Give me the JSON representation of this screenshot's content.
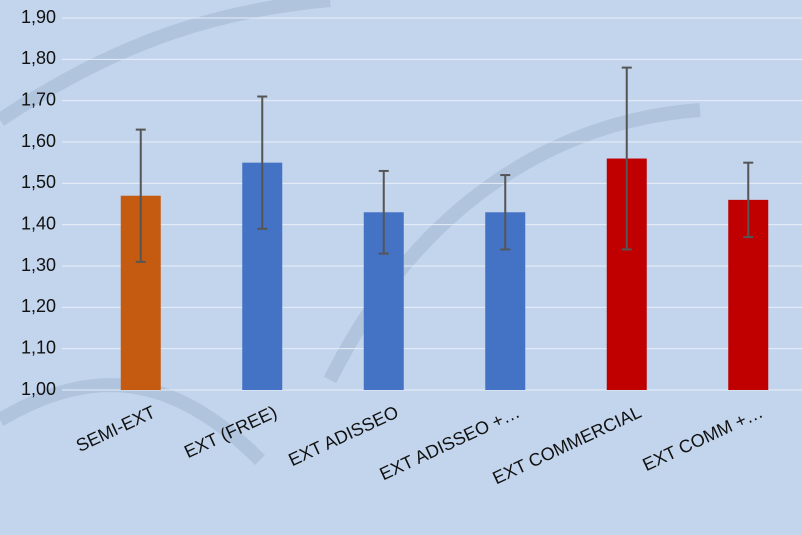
{
  "chart_data": {
    "type": "bar",
    "categories": [
      "SEMI-EXT",
      "EXT (FREE)",
      "EXT ADISSEO",
      "EXT ADISSEO +…",
      "EXT COMMERCIAL",
      "EXT COMM +…"
    ],
    "values": [
      1.47,
      1.55,
      1.43,
      1.43,
      1.56,
      1.46
    ],
    "errors": [
      0.16,
      0.16,
      0.1,
      0.09,
      0.22,
      0.09
    ],
    "colors": [
      "#c55a11",
      "#4472c4",
      "#4472c4",
      "#4472c4",
      "#c00000",
      "#c00000"
    ],
    "ylim": [
      1,
      1.9
    ],
    "yticks": [
      {
        "value": 1,
        "label": "1,00"
      },
      {
        "value": 1.1,
        "label": "1,10"
      },
      {
        "value": 1.2,
        "label": "1,20"
      },
      {
        "value": 1.3,
        "label": "1,30"
      },
      {
        "value": 1.4,
        "label": "1,40"
      },
      {
        "value": 1.5,
        "label": "1,50"
      },
      {
        "value": 1.6,
        "label": "1,60"
      },
      {
        "value": 1.7,
        "label": "1,70"
      },
      {
        "value": 1.8,
        "label": "1,80"
      },
      {
        "value": 1.9,
        "label": "1,90"
      }
    ],
    "grid": true
  }
}
